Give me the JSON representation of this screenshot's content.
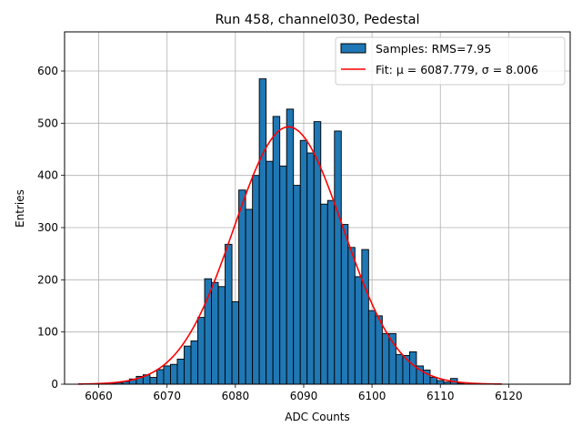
{
  "chart_data": {
    "type": "bar",
    "title": "Run 458, channel030, Pedestal",
    "xlabel": "ADC Counts",
    "ylabel": "Entries",
    "xlim": [
      6055,
      6129
    ],
    "ylim": [
      0,
      675
    ],
    "xticks": [
      6060,
      6070,
      6080,
      6090,
      6100,
      6110,
      6120
    ],
    "yticks": [
      0,
      100,
      200,
      300,
      400,
      500,
      600
    ],
    "grid": true,
    "legend_position": "top-right",
    "colors": {
      "bar_fill": "#1f77b4",
      "bar_edge": "#000000",
      "fit_line": "#ff0000"
    },
    "bin_width": 1,
    "bins_x": [
      6060,
      6061,
      6062,
      6063,
      6064,
      6065,
      6066,
      6067,
      6068,
      6069,
      6070,
      6071,
      6072,
      6073,
      6074,
      6075,
      6076,
      6077,
      6078,
      6079,
      6080,
      6081,
      6082,
      6083,
      6084,
      6085,
      6086,
      6087,
      6088,
      6089,
      6090,
      6091,
      6092,
      6093,
      6094,
      6095,
      6096,
      6097,
      6098,
      6099,
      6100,
      6101,
      6102,
      6103,
      6104,
      6105,
      6106,
      6107,
      6108,
      6109,
      6110,
      6111,
      6112,
      6113
    ],
    "bins_count": [
      1,
      1,
      2,
      3,
      5,
      10,
      15,
      18,
      13,
      28,
      35,
      38,
      48,
      73,
      83,
      128,
      202,
      195,
      187,
      268,
      158,
      372,
      335,
      400,
      585,
      427,
      513,
      418,
      527,
      381,
      467,
      443,
      503,
      345,
      352,
      485,
      306,
      262,
      206,
      258,
      141,
      131,
      97,
      97,
      57,
      55,
      62,
      35,
      27,
      13,
      7,
      4,
      11,
      2
    ],
    "series": [
      {
        "name": "Samples: RMS=7.95",
        "kind": "histogram"
      },
      {
        "name": "Fit: μ = 6087.779, σ = 8.006",
        "kind": "line",
        "mu": 6087.779,
        "sigma": 8.006,
        "amplitude": 493,
        "x_range": [
          6057,
          6119
        ]
      }
    ]
  }
}
